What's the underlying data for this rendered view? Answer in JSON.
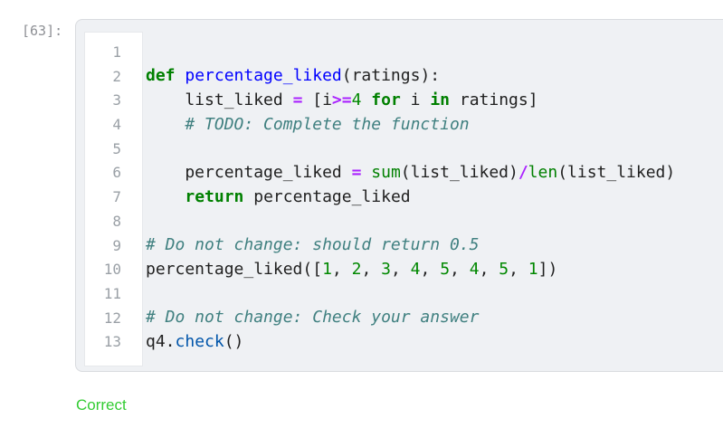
{
  "cell": {
    "prompt": "[63]:",
    "editor": {
      "lines": [
        {
          "num": 1,
          "tokens": []
        },
        {
          "num": 2,
          "tokens": [
            [
              "kw",
              "def"
            ],
            [
              "pl",
              " "
            ],
            [
              "fn",
              "percentage_liked"
            ],
            [
              "pl",
              "(ratings):"
            ]
          ]
        },
        {
          "num": 3,
          "tokens": [
            [
              "pl",
              "    list_liked "
            ],
            [
              "op",
              "="
            ],
            [
              "pl",
              " [i"
            ],
            [
              "op",
              ">="
            ],
            [
              "num",
              "4"
            ],
            [
              "pl",
              " "
            ],
            [
              "kw",
              "for"
            ],
            [
              "pl",
              " i "
            ],
            [
              "kw",
              "in"
            ],
            [
              "pl",
              " ratings]"
            ]
          ]
        },
        {
          "num": 4,
          "tokens": [
            [
              "com",
              "    # TODO: Complete the function"
            ]
          ]
        },
        {
          "num": 5,
          "tokens": []
        },
        {
          "num": 6,
          "tokens": [
            [
              "pl",
              "    percentage_liked "
            ],
            [
              "op",
              "="
            ],
            [
              "pl",
              " "
            ],
            [
              "bi",
              "sum"
            ],
            [
              "pl",
              "(list_liked)"
            ],
            [
              "op",
              "/"
            ],
            [
              "bi",
              "len"
            ],
            [
              "pl",
              "(list_liked)"
            ]
          ]
        },
        {
          "num": 7,
          "tokens": [
            [
              "pl",
              "    "
            ],
            [
              "kw",
              "return"
            ],
            [
              "pl",
              " percentage_liked"
            ]
          ]
        },
        {
          "num": 8,
          "tokens": []
        },
        {
          "num": 9,
          "tokens": [
            [
              "com",
              "# Do not change: should return 0.5"
            ]
          ]
        },
        {
          "num": 10,
          "tokens": [
            [
              "pl",
              "percentage_liked(["
            ],
            [
              "num",
              "1"
            ],
            [
              "pl",
              ", "
            ],
            [
              "num",
              "2"
            ],
            [
              "pl",
              ", "
            ],
            [
              "num",
              "3"
            ],
            [
              "pl",
              ", "
            ],
            [
              "num",
              "4"
            ],
            [
              "pl",
              ", "
            ],
            [
              "num",
              "5"
            ],
            [
              "pl",
              ", "
            ],
            [
              "num",
              "4"
            ],
            [
              "pl",
              ", "
            ],
            [
              "num",
              "5"
            ],
            [
              "pl",
              ", "
            ],
            [
              "num",
              "1"
            ],
            [
              "pl",
              "])"
            ]
          ]
        },
        {
          "num": 11,
          "tokens": []
        },
        {
          "num": 12,
          "tokens": [
            [
              "com",
              "# Do not change: Check your answer"
            ]
          ]
        },
        {
          "num": 13,
          "tokens": [
            [
              "pl",
              "q4."
            ],
            [
              "prop",
              "check"
            ],
            [
              "pl",
              "()"
            ]
          ]
        }
      ]
    }
  },
  "result": {
    "text": "Correct"
  },
  "palette": {
    "keyword": "#008000",
    "builtin": "#008000",
    "number": "#008800",
    "comment": "#408080",
    "operator": "#aa22ff",
    "function": "#0000ff",
    "property": "#0055aa",
    "text": "#212121",
    "line_number": "#9aa0a6",
    "prompt": "#8e9095",
    "cell_bg": "#eff1f4",
    "cell_border": "#d9dbdf",
    "gutter_bg": "#ffffff",
    "gutter_border": "#e6e8eb",
    "correct": "#33cc33"
  }
}
